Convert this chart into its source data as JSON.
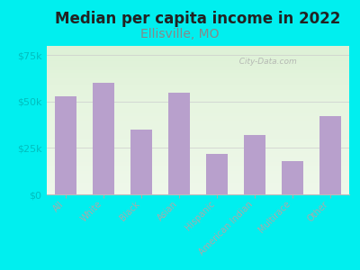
{
  "title": "Median per capita income in 2022",
  "subtitle": "Ellisville, MO",
  "categories": [
    "All",
    "White",
    "Black",
    "Asian",
    "Hispanic",
    "American Indian",
    "Multirace",
    "Other"
  ],
  "values": [
    53000,
    60000,
    35000,
    55000,
    22000,
    32000,
    18000,
    42000
  ],
  "bar_color": "#b8a0cc",
  "background_color": "#00EFEF",
  "title_fontsize": 12,
  "subtitle_fontsize": 10,
  "subtitle_color": "#888888",
  "title_color": "#222222",
  "ytick_label_color": "#00BFBF",
  "xtick_label_color": "#888888",
  "ylim": [
    0,
    80000
  ],
  "yticks": [
    0,
    25000,
    50000,
    75000
  ],
  "watermark": "  City-Data.com",
  "watermark_color": "#aaaaaa"
}
